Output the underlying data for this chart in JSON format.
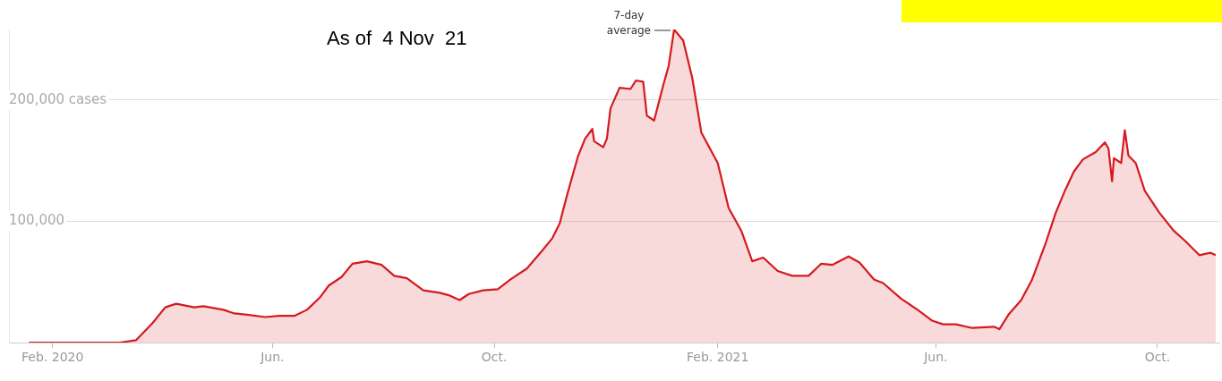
{
  "chart_data": {
    "type": "area",
    "title": "As of  4 Nov  21",
    "x": [
      "2020-01-19",
      "2020-03-09",
      "2020-03-18",
      "2020-03-27",
      "2020-04-03",
      "2020-04-09",
      "2020-04-19",
      "2020-04-24",
      "2020-05-05",
      "2020-05-11",
      "2020-05-18",
      "2020-05-28",
      "2020-06-05",
      "2020-06-13",
      "2020-06-20",
      "2020-06-27",
      "2020-07-02",
      "2020-07-09",
      "2020-07-15",
      "2020-07-23",
      "2020-07-31",
      "2020-08-07",
      "2020-08-14",
      "2020-08-23",
      "2020-09-01",
      "2020-09-06",
      "2020-09-12",
      "2020-09-17",
      "2020-09-25",
      "2020-10-03",
      "2020-10-10",
      "2020-10-19",
      "2020-10-27",
      "2020-11-02",
      "2020-11-06",
      "2020-11-10",
      "2020-11-16",
      "2020-11-20",
      "2020-11-24",
      "2020-11-25",
      "2020-11-30",
      "2020-12-02",
      "2020-12-04",
      "2020-12-09",
      "2020-12-15",
      "2020-12-18",
      "2020-12-22",
      "2020-12-24",
      "2020-12-28",
      "2021-01-02",
      "2021-01-05",
      "2021-01-08",
      "2021-01-13",
      "2021-01-18",
      "2021-01-23",
      "2021-02-01",
      "2021-02-07",
      "2021-02-14",
      "2021-02-20",
      "2021-02-26",
      "2021-03-06",
      "2021-03-14",
      "2021-03-23",
      "2021-03-30",
      "2021-04-05",
      "2021-04-14",
      "2021-04-20",
      "2021-04-28",
      "2021-05-03",
      "2021-05-13",
      "2021-05-22",
      "2021-05-30",
      "2021-06-05",
      "2021-06-12",
      "2021-06-21",
      "2021-07-03",
      "2021-07-06",
      "2021-07-11",
      "2021-07-18",
      "2021-07-24",
      "2021-07-31",
      "2021-08-06",
      "2021-08-11",
      "2021-08-16",
      "2021-08-21",
      "2021-08-28",
      "2021-09-02",
      "2021-09-04",
      "2021-09-06",
      "2021-09-07",
      "2021-09-11",
      "2021-09-13",
      "2021-09-15",
      "2021-09-19",
      "2021-09-24",
      "2021-10-02",
      "2021-10-10",
      "2021-10-16",
      "2021-10-24",
      "2021-10-30",
      "2021-11-02"
    ],
    "series": [
      {
        "name": "7-day average",
        "color": "#d41a1f",
        "values": [
          0,
          0,
          2000,
          16000,
          29000,
          32000,
          29000,
          30000,
          27000,
          24000,
          23000,
          21000,
          22000,
          22000,
          27000,
          37000,
          47000,
          54000,
          65000,
          67000,
          64000,
          55000,
          53000,
          43000,
          41000,
          39000,
          35000,
          40000,
          43000,
          44000,
          52000,
          61000,
          75000,
          86000,
          98000,
          121000,
          153000,
          168000,
          176000,
          166000,
          161000,
          168000,
          193000,
          210000,
          209000,
          216000,
          215000,
          187000,
          183000,
          212000,
          228000,
          258000,
          249000,
          218000,
          173000,
          148000,
          111000,
          92000,
          67000,
          70000,
          59000,
          55000,
          55000,
          65000,
          64000,
          71000,
          66000,
          52000,
          49000,
          36000,
          27000,
          18000,
          15000,
          15000,
          12000,
          13000,
          11000,
          23000,
          35000,
          52000,
          80000,
          107000,
          125000,
          141000,
          151000,
          157000,
          165000,
          160000,
          133000,
          152000,
          148000,
          175000,
          154000,
          148000,
          125000,
          107000,
          92000,
          84000,
          72000,
          74000,
          72000
        ]
      }
    ],
    "xlim": [
      "2020-01-08",
      "2021-11-04"
    ],
    "xticks": [
      {
        "value": "2020-02-01",
        "label": "Feb. 2020"
      },
      {
        "value": "2020-06-01",
        "label": "Jun."
      },
      {
        "value": "2020-10-01",
        "label": "Oct."
      },
      {
        "value": "2021-02-01",
        "label": "Feb. 2021"
      },
      {
        "value": "2021-06-01",
        "label": "Jun."
      },
      {
        "value": "2021-10-01",
        "label": "Oct."
      }
    ],
    "yticks": [
      {
        "value": 100000,
        "label": "100,000"
      },
      {
        "value": 200000,
        "label": "200,000 cases"
      }
    ],
    "ylim": [
      0,
      258000
    ],
    "grid": "y"
  }
}
